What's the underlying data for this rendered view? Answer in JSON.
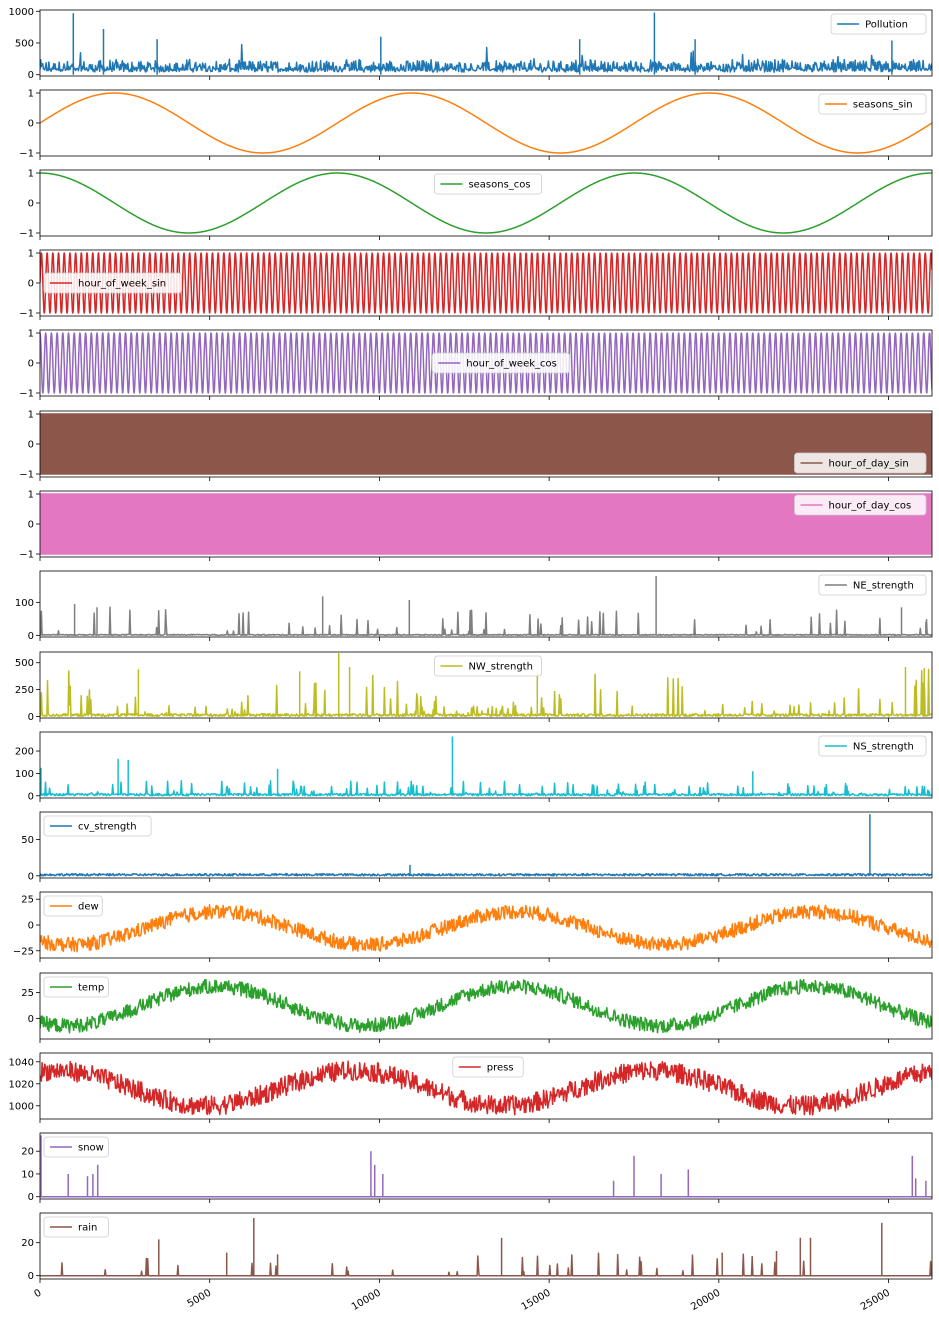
{
  "chart_data": {
    "type": "line",
    "x_range": [
      0,
      26280
    ],
    "x_ticks": [
      0,
      5000,
      10000,
      15000,
      20000,
      25000
    ],
    "x_tick_labels": [
      "0",
      "5000",
      "10000",
      "15000",
      "20000",
      "25000"
    ],
    "grid": false,
    "panels": [
      {
        "name": "Pollution",
        "color": "#1f77b4",
        "ylim": [
          -20,
          1020
        ],
        "yticks": [
          0,
          500,
          1000
        ],
        "ytick_labels": [
          "0",
          "500",
          "1000"
        ],
        "legend": "top-right"
      },
      {
        "name": "seasons_sin",
        "color": "#ff7f0e",
        "ylim": [
          -1.1,
          1.1
        ],
        "yticks": [
          -1,
          0,
          1
        ],
        "ytick_labels": [
          "−1",
          "0",
          "1"
        ],
        "legend": "top-right"
      },
      {
        "name": "seasons_cos",
        "color": "#2ca02c",
        "ylim": [
          -1.1,
          1.1
        ],
        "yticks": [
          -1,
          0,
          1
        ],
        "ytick_labels": [
          "−1",
          "0",
          "1"
        ],
        "legend": "top-center"
      },
      {
        "name": "hour_of_week_sin",
        "color": "#d62728",
        "ylim": [
          -1.1,
          1.1
        ],
        "yticks": [
          -1,
          0,
          1
        ],
        "ytick_labels": [
          "−1",
          "0",
          "1"
        ],
        "legend": "center-left"
      },
      {
        "name": "hour_of_week_cos",
        "color": "#9467bd",
        "ylim": [
          -1.1,
          1.1
        ],
        "yticks": [
          -1,
          0,
          1
        ],
        "ytick_labels": [
          "−1",
          "0",
          "1"
        ],
        "legend": "center"
      },
      {
        "name": "hour_of_day_sin",
        "color": "#8c564b",
        "ylim": [
          -1.1,
          1.1
        ],
        "yticks": [
          -1,
          0,
          1
        ],
        "ytick_labels": [
          "−1",
          "0",
          "1"
        ],
        "legend": "bottom-right"
      },
      {
        "name": "hour_of_day_cos",
        "color": "#e377c2",
        "ylim": [
          -1.1,
          1.1
        ],
        "yticks": [
          -1,
          0,
          1
        ],
        "ytick_labels": [
          "−1",
          "0",
          "1"
        ],
        "legend": "top-right"
      },
      {
        "name": "NE_strength",
        "color": "#7f7f7f",
        "ylim": [
          -5,
          195
        ],
        "yticks": [
          0,
          100
        ],
        "ytick_labels": [
          "0",
          "100"
        ],
        "legend": "top-right"
      },
      {
        "name": "NW_strength",
        "color": "#bcbd22",
        "ylim": [
          -15,
          600
        ],
        "yticks": [
          0,
          250,
          500
        ],
        "ytick_labels": [
          "0",
          "250",
          "500"
        ],
        "legend": "top-center"
      },
      {
        "name": "NS_strength",
        "color": "#17becf",
        "ylim": [
          -10,
          285
        ],
        "yticks": [
          0,
          100,
          200
        ],
        "ytick_labels": [
          "0",
          "100",
          "200"
        ],
        "legend": "top-right"
      },
      {
        "name": "cv_strength",
        "color": "#1f77b4",
        "ylim": [
          -3,
          88
        ],
        "yticks": [
          0,
          50
        ],
        "ytick_labels": [
          "0",
          "50"
        ],
        "legend": "top-left"
      },
      {
        "name": "dew",
        "color": "#ff7f0e",
        "ylim": [
          -32,
          32
        ],
        "yticks": [
          -25,
          0,
          25
        ],
        "ytick_labels": [
          "−25",
          "0",
          "25"
        ],
        "legend": "top-left"
      },
      {
        "name": "temp",
        "color": "#2ca02c",
        "ylim": [
          -20,
          44
        ],
        "yticks": [
          0,
          25
        ],
        "ytick_labels": [
          "0",
          "25"
        ],
        "legend": "top-left"
      },
      {
        "name": "press",
        "color": "#d62728",
        "ylim": [
          988,
          1048
        ],
        "yticks": [
          1000,
          1020,
          1040
        ],
        "ytick_labels": [
          "1000",
          "1020",
          "1040"
        ],
        "legend": "top-center"
      },
      {
        "name": "snow",
        "color": "#9467bd",
        "ylim": [
          -1,
          28
        ],
        "yticks": [
          0,
          10,
          20
        ],
        "ytick_labels": [
          "0",
          "10",
          "20"
        ],
        "legend": "top-left"
      },
      {
        "name": "rain",
        "color": "#8c564b",
        "ylim": [
          -2,
          38
        ],
        "yticks": [
          0,
          20
        ],
        "ytick_labels": [
          "0",
          "20"
        ],
        "legend": "top-left"
      }
    ]
  }
}
